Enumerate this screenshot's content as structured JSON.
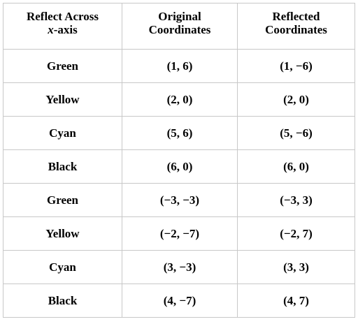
{
  "table": {
    "header": {
      "col1_line1": "Reflect Across",
      "col1_axis": "x",
      "col1_axis_suffix": "-axis",
      "col2_line1": "Original",
      "col2_line2": "Coordinates",
      "col3_line1": "Reflected",
      "col3_line2": "Coordinates"
    },
    "rows": [
      {
        "color": "Green",
        "original": "(1, 6)",
        "reflected": "(1, −6)"
      },
      {
        "color": "Yellow",
        "original": "(2, 0)",
        "reflected": "(2, 0)"
      },
      {
        "color": "Cyan",
        "original": "(5, 6)",
        "reflected": "(5, −6)"
      },
      {
        "color": "Black",
        "original": "(6, 0)",
        "reflected": "(6, 0)"
      },
      {
        "color": "Green",
        "original": "(−3, −3)",
        "reflected": "(−3, 3)"
      },
      {
        "color": "Yellow",
        "original": "(−2, −7)",
        "reflected": "(−2, 7)"
      },
      {
        "color": "Cyan",
        "original": "(3, −3)",
        "reflected": "(3, 3)"
      },
      {
        "color": "Black",
        "original": "(4, −7)",
        "reflected": "(4, 7)"
      }
    ]
  }
}
